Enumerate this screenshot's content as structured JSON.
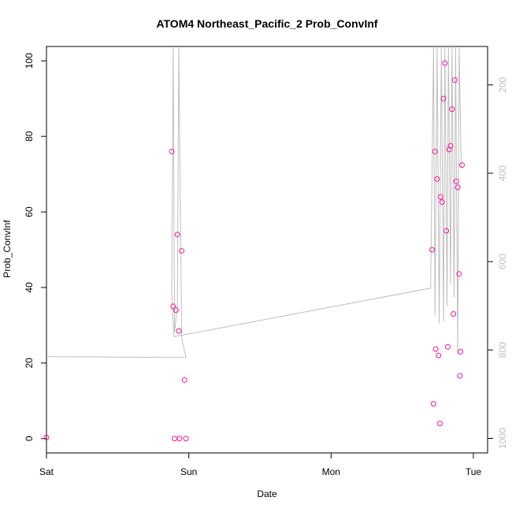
{
  "chart_data": {
    "type": "scatter",
    "title": "ATOM4 Northeast_Pacific_2 Prob_ConvInf",
    "xlabel": "Date",
    "ylabel": "Prob_ConvInf",
    "xlim": [
      0,
      3.1
    ],
    "ylim": [
      -3.8,
      103.8
    ],
    "x_ticks": [
      {
        "value": 0,
        "label": "Sat"
      },
      {
        "value": 1,
        "label": "Sun"
      },
      {
        "value": 2,
        "label": "Mon"
      },
      {
        "value": 3,
        "label": "Tue"
      }
    ],
    "y_ticks": [
      0,
      20,
      40,
      60,
      80,
      100
    ],
    "right_axis": {
      "label_color": "#bebebe",
      "ylim": [
        1033,
        113
      ],
      "ticks": [
        200,
        400,
        600,
        800,
        1000
      ]
    },
    "series": [
      {
        "marker": "open-circle",
        "color": "#ff1493",
        "points": [
          {
            "x": 0.0,
            "y": 0.3
          },
          {
            "x": 0.88,
            "y": 76
          },
          {
            "x": 0.89,
            "y": 35
          },
          {
            "x": 0.9,
            "y": 0
          },
          {
            "x": 0.91,
            "y": 34
          },
          {
            "x": 0.92,
            "y": 54
          },
          {
            "x": 0.93,
            "y": 28.5
          },
          {
            "x": 0.935,
            "y": 0
          },
          {
            "x": 0.95,
            "y": 49.7
          },
          {
            "x": 0.97,
            "y": 15.5
          },
          {
            "x": 0.98,
            "y": 0
          },
          {
            "x": 2.71,
            "y": 50
          },
          {
            "x": 2.72,
            "y": 9.2
          },
          {
            "x": 2.73,
            "y": 76
          },
          {
            "x": 2.735,
            "y": 23.7
          },
          {
            "x": 2.745,
            "y": 68.7
          },
          {
            "x": 2.755,
            "y": 22
          },
          {
            "x": 2.765,
            "y": 4
          },
          {
            "x": 2.77,
            "y": 64
          },
          {
            "x": 2.78,
            "y": 62.6
          },
          {
            "x": 2.79,
            "y": 90
          },
          {
            "x": 2.8,
            "y": 99.4
          },
          {
            "x": 2.81,
            "y": 55
          },
          {
            "x": 2.82,
            "y": 24.3
          },
          {
            "x": 2.83,
            "y": 76.5
          },
          {
            "x": 2.84,
            "y": 77.5
          },
          {
            "x": 2.85,
            "y": 87.2
          },
          {
            "x": 2.86,
            "y": 33
          },
          {
            "x": 2.87,
            "y": 94.9
          },
          {
            "x": 2.88,
            "y": 68.1
          },
          {
            "x": 2.89,
            "y": 66.5
          },
          {
            "x": 2.9,
            "y": 43.6
          },
          {
            "x": 2.905,
            "y": 16.6
          },
          {
            "x": 2.91,
            "y": 23
          },
          {
            "x": 2.92,
            "y": 72.4
          }
        ]
      },
      {
        "kind": "line",
        "axis": "right",
        "color": "#bebebe",
        "points": [
          {
            "x": 0.0,
            "y": 815
          },
          {
            "x": 0.98,
            "y": 817
          },
          {
            "x": 0.95,
            "y": 773
          },
          {
            "x": 0.93,
            "y": 113
          },
          {
            "x": 0.92,
            "y": 700
          },
          {
            "x": 0.9,
            "y": 760
          },
          {
            "x": 0.89,
            "y": 113
          },
          {
            "x": 0.88,
            "y": 667
          },
          {
            "x": 0.895,
            "y": 770
          },
          {
            "x": 2.7,
            "y": 660
          },
          {
            "x": 2.72,
            "y": 113
          },
          {
            "x": 2.73,
            "y": 722
          },
          {
            "x": 2.745,
            "y": 113
          },
          {
            "x": 2.76,
            "y": 740
          },
          {
            "x": 2.775,
            "y": 113
          },
          {
            "x": 2.79,
            "y": 735
          },
          {
            "x": 2.8,
            "y": 113
          },
          {
            "x": 2.815,
            "y": 700
          },
          {
            "x": 2.825,
            "y": 113
          },
          {
            "x": 2.84,
            "y": 650
          },
          {
            "x": 2.85,
            "y": 113
          },
          {
            "x": 2.865,
            "y": 680
          },
          {
            "x": 2.875,
            "y": 113
          },
          {
            "x": 2.89,
            "y": 810
          },
          {
            "x": 2.9,
            "y": 113
          },
          {
            "x": 2.915,
            "y": 390
          }
        ]
      }
    ],
    "grid": false,
    "legend": "none"
  }
}
